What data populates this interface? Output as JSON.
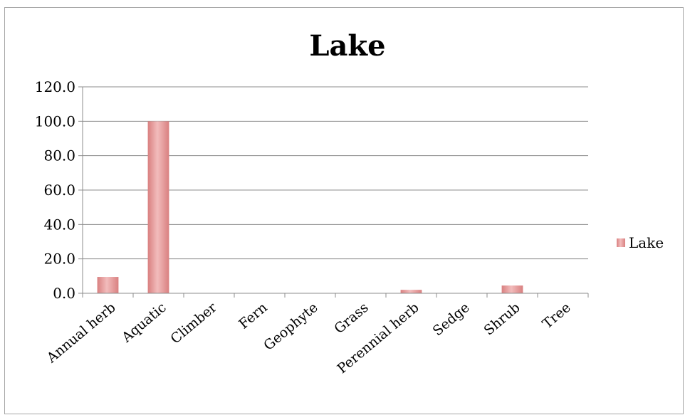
{
  "chart_data": {
    "type": "bar",
    "title": "Lake",
    "xlabel": "",
    "ylabel": "",
    "categories": [
      "Annual herb",
      "Aquatic",
      "Climber",
      "Fern",
      "Geophyte",
      "Grass",
      "Perennial herb",
      "Sedge",
      "Shrub",
      "Tree"
    ],
    "series": [
      {
        "name": "Lake",
        "values": [
          9.5,
          100.0,
          0,
          0,
          0,
          0,
          2.0,
          0,
          4.5,
          0
        ],
        "color": "#e8a3a3"
      }
    ],
    "ylim": [
      0,
      120
    ],
    "yticks": [
      "0.0",
      "20.0",
      "40.0",
      "60.0",
      "80.0",
      "100.0",
      "120.0"
    ],
    "grid": true,
    "legend": "right"
  }
}
